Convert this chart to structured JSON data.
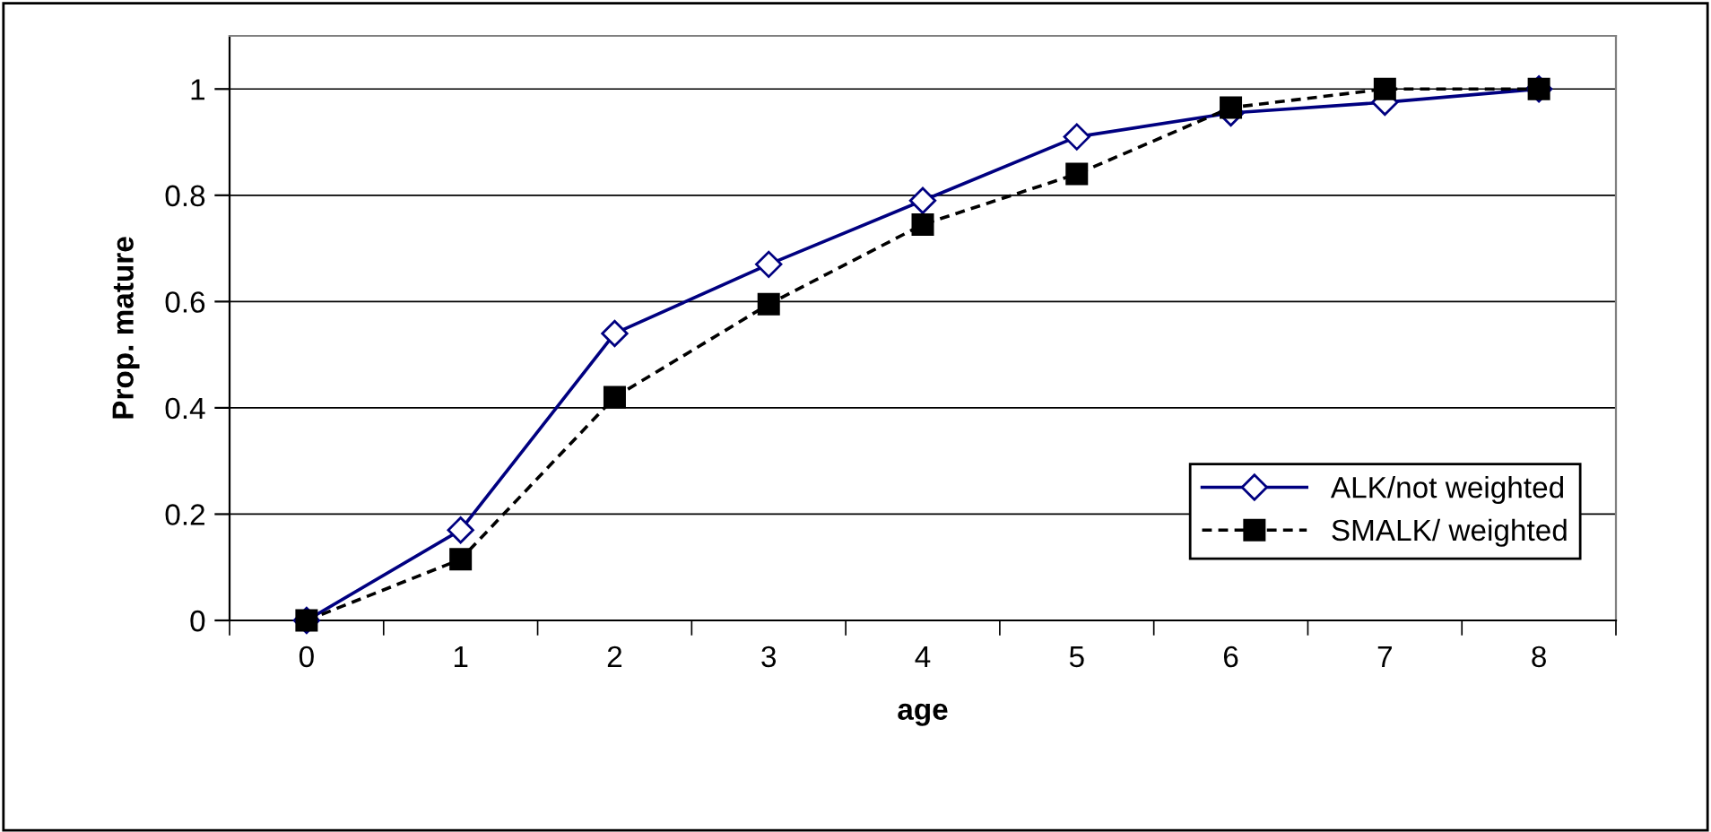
{
  "chart_data": {
    "type": "line",
    "xlabel": "age",
    "ylabel": "Prop. mature",
    "categories": [
      "0",
      "1",
      "2",
      "3",
      "4",
      "5",
      "6",
      "7",
      "8"
    ],
    "series": [
      {
        "name": "ALK/not weighted",
        "color": "#000080",
        "marker": "diamond",
        "line_style": "solid",
        "values": [
          0,
          0.17,
          0.54,
          0.67,
          0.79,
          0.91,
          0.955,
          0.975,
          1
        ]
      },
      {
        "name": "SMALK/ weighted",
        "color": "#000000",
        "marker": "square",
        "line_style": "dashed",
        "values": [
          0,
          0.115,
          0.42,
          0.595,
          0.745,
          0.84,
          0.965,
          1,
          1
        ]
      }
    ],
    "ylim": [
      0,
      1.1
    ],
    "yticks": [
      0,
      0.2,
      0.4,
      0.6,
      0.8,
      1
    ],
    "grid": "y",
    "legend": "bottom right"
  }
}
